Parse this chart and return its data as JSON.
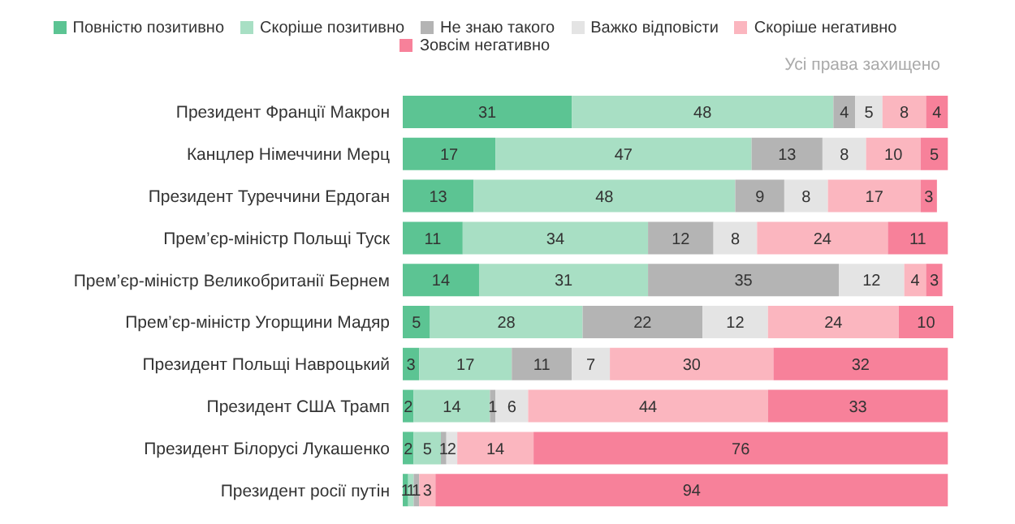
{
  "chart_data": {
    "type": "bar",
    "orientation": "horizontal",
    "stacked": true,
    "data_labels": true,
    "legend": "top",
    "categories": [
      "Президент Франції Макрон",
      "Канцлер Німеччини Мерц",
      "Президент Туреччини Ердоган",
      "Прем’єр-міністр Польщі Туск",
      "Прем’єр-міністр Великобританії Бернем",
      "Прем’єр-міністр Угорщини Мадяр",
      "Президент Польщі Навроцький",
      "Президент США Трамп",
      "Президент Білорусі Лукашенко",
      "Президент росії путін"
    ],
    "series": [
      {
        "name": "Повністю позитивно",
        "color": "#5cc493",
        "values": [
          31,
          17,
          13,
          11,
          14,
          5,
          3,
          2,
          2,
          1
        ]
      },
      {
        "name": "Скоріше позитивно",
        "color": "#a8dfc4",
        "values": [
          48,
          47,
          48,
          34,
          31,
          28,
          17,
          14,
          5,
          1
        ]
      },
      {
        "name": "Не знаю такого",
        "color": "#b4b4b4",
        "values": [
          4,
          13,
          9,
          12,
          35,
          22,
          11,
          1,
          1,
          1
        ]
      },
      {
        "name": "Важко відповісти",
        "color": "#e4e4e4",
        "values": [
          5,
          8,
          8,
          8,
          12,
          12,
          7,
          6,
          2,
          null
        ]
      },
      {
        "name": "Скоріше негативно",
        "color": "#fbb6bf",
        "values": [
          8,
          10,
          17,
          24,
          4,
          24,
          30,
          44,
          14,
          3
        ]
      },
      {
        "name": "Зовсім негативно",
        "color": "#f7819a",
        "values": [
          4,
          5,
          3,
          11,
          3,
          10,
          32,
          33,
          76,
          94
        ]
      }
    ],
    "annotations": [
      "Усі права захищено"
    ]
  }
}
